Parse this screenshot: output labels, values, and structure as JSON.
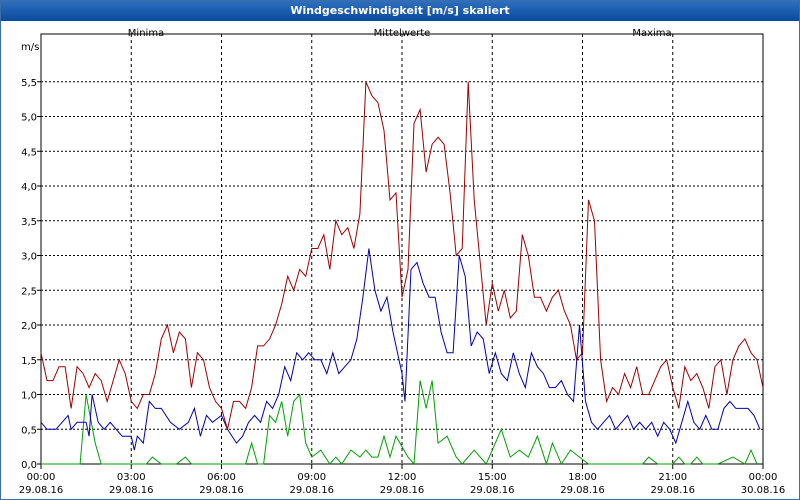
{
  "window": {
    "title": "Windgeschwindigkeit [m/s] skaliert"
  },
  "chart_data": {
    "type": "line",
    "title": "Windgeschwindigkeit [m/s] skaliert",
    "ylabel": "m/s",
    "ylim": [
      0,
      5.7
    ],
    "yticks": [
      "0,0",
      "0,5",
      "1,0",
      "1,5",
      "2,0",
      "2,5",
      "3,0",
      "3,5",
      "4,0",
      "4,5",
      "5,0",
      "5,5"
    ],
    "xlim_hours": [
      0,
      24
    ],
    "xticks": [
      {
        "time": "00:00",
        "date": "29.08.16"
      },
      {
        "time": "03:00",
        "date": "29.08.16"
      },
      {
        "time": "06:00",
        "date": "29.08.16"
      },
      {
        "time": "09:00",
        "date": "29.08.16"
      },
      {
        "time": "12:00",
        "date": "29.08.16"
      },
      {
        "time": "15:00",
        "date": "29.08.16"
      },
      {
        "time": "18:00",
        "date": "29.08.16"
      },
      {
        "time": "21:00",
        "date": "29.08.16"
      },
      {
        "time": "00:00",
        "date": "30.08.16"
      }
    ],
    "grid": true,
    "legend_position": "top",
    "series": [
      {
        "name": "Minima",
        "color": "#00a000",
        "x": [
          0,
          1.3,
          1.5,
          1.8,
          2.0,
          2.4,
          3.5,
          3.7,
          4.0,
          4.5,
          4.8,
          5.0,
          5.5,
          6.0,
          6.5,
          6.8,
          7.0,
          7.2,
          7.4,
          7.6,
          7.8,
          8.0,
          8.2,
          8.4,
          8.6,
          8.8,
          9.0,
          9.3,
          9.6,
          9.8,
          10.0,
          10.3,
          10.6,
          10.8,
          11.0,
          11.2,
          11.4,
          11.6,
          11.8,
          12.2,
          12.4,
          12.6,
          12.8,
          13.0,
          13.2,
          13.5,
          13.8,
          14.0,
          14.4,
          14.6,
          14.8,
          15.0,
          15.3,
          15.6,
          15.9,
          16.2,
          16.5,
          16.8,
          17.0,
          17.3,
          17.6,
          17.9,
          18.2,
          19.0,
          19.5,
          20.0,
          20.2,
          20.5,
          21.0,
          21.2,
          21.4,
          21.6,
          21.8,
          22.0,
          22.5,
          23.0,
          23.4,
          23.6,
          23.8
        ],
        "y": [
          0.0,
          0.0,
          1.0,
          0.3,
          0.0,
          0.0,
          0.0,
          0.1,
          0.0,
          0.0,
          0.1,
          0.0,
          0.0,
          0.0,
          0.0,
          0.0,
          0.3,
          0.0,
          0.0,
          0.7,
          0.6,
          0.9,
          0.4,
          0.9,
          1.0,
          0.3,
          0.1,
          0.2,
          0.0,
          0.1,
          0.0,
          0.2,
          0.1,
          0.2,
          0.1,
          0.1,
          0.4,
          0.1,
          0.4,
          0.1,
          0.0,
          1.2,
          0.8,
          1.2,
          0.3,
          0.4,
          0.1,
          0.0,
          0.2,
          0.1,
          0.0,
          0.2,
          0.5,
          0.1,
          0.2,
          0.1,
          0.4,
          0.0,
          0.3,
          0.0,
          0.2,
          0.1,
          0.0,
          0.0,
          0.0,
          0.0,
          0.1,
          0.0,
          0.0,
          0.1,
          0.0,
          0.0,
          0.1,
          0.0,
          0.0,
          0.1,
          0.0,
          0.2,
          0.0
        ]
      },
      {
        "name": "Mittelwerte",
        "color": "#0000b0",
        "x": [
          0,
          0.2,
          0.5,
          0.7,
          0.9,
          1.0,
          1.2,
          1.5,
          1.6,
          1.7,
          1.9,
          2.1,
          2.3,
          2.5,
          2.7,
          2.9,
          3.0,
          3.1,
          3.2,
          3.4,
          3.6,
          3.8,
          4.0,
          4.3,
          4.6,
          4.9,
          5.1,
          5.3,
          5.5,
          5.7,
          6.0,
          6.2,
          6.5,
          6.7,
          6.9,
          7.1,
          7.3,
          7.5,
          7.7,
          7.9,
          8.1,
          8.3,
          8.5,
          8.7,
          8.9,
          9.1,
          9.3,
          9.5,
          9.7,
          9.9,
          10.1,
          10.3,
          10.5,
          10.7,
          10.9,
          11.1,
          11.3,
          11.5,
          11.7,
          11.9,
          12.0,
          12.1,
          12.3,
          12.5,
          12.7,
          12.9,
          13.1,
          13.3,
          13.5,
          13.7,
          13.9,
          14.1,
          14.3,
          14.5,
          14.7,
          14.9,
          15.1,
          15.3,
          15.5,
          15.7,
          15.9,
          16.1,
          16.3,
          16.5,
          16.7,
          16.9,
          17.1,
          17.3,
          17.5,
          17.7,
          17.9,
          18.1,
          18.3,
          18.5,
          18.7,
          18.9,
          19.1,
          19.3,
          19.5,
          19.7,
          19.9,
          20.1,
          20.3,
          20.5,
          20.7,
          20.9,
          21.1,
          21.3,
          21.5,
          21.7,
          21.9,
          22.1,
          22.3,
          22.5,
          22.7,
          22.9,
          23.1,
          23.3,
          23.5,
          23.7,
          23.9
        ],
        "y": [
          0.6,
          0.5,
          0.5,
          0.6,
          0.7,
          0.5,
          0.6,
          0.6,
          0.4,
          1.0,
          0.6,
          0.5,
          0.6,
          0.5,
          0.4,
          0.4,
          0.4,
          0.2,
          0.4,
          0.3,
          0.9,
          0.8,
          0.8,
          0.6,
          0.5,
          0.6,
          0.8,
          0.4,
          0.7,
          0.6,
          0.7,
          0.5,
          0.3,
          0.4,
          0.6,
          0.7,
          0.6,
          0.9,
          0.8,
          1.0,
          1.4,
          1.2,
          1.6,
          1.5,
          1.6,
          1.5,
          1.5,
          1.3,
          1.6,
          1.3,
          1.4,
          1.5,
          1.8,
          2.4,
          3.1,
          2.5,
          2.2,
          2.4,
          1.9,
          1.5,
          1.3,
          0.9,
          2.8,
          2.9,
          2.6,
          2.4,
          2.4,
          1.9,
          1.6,
          1.6,
          3.0,
          2.7,
          1.7,
          1.9,
          1.8,
          1.3,
          1.6,
          1.3,
          1.2,
          1.6,
          1.3,
          1.1,
          1.6,
          1.4,
          1.3,
          1.1,
          1.1,
          1.2,
          1.0,
          0.9,
          2.0,
          0.9,
          0.6,
          0.5,
          0.6,
          0.7,
          0.5,
          0.6,
          0.7,
          0.5,
          0.6,
          0.5,
          0.6,
          0.4,
          0.6,
          0.5,
          0.3,
          0.6,
          0.9,
          0.6,
          0.5,
          0.7,
          0.5,
          0.5,
          0.8,
          0.9,
          0.8,
          0.8,
          0.8,
          0.7,
          0.5
        ]
      },
      {
        "name": "Maxima",
        "color": "#a00000",
        "x": [
          0,
          0.2,
          0.4,
          0.6,
          0.8,
          1.0,
          1.2,
          1.4,
          1.6,
          1.8,
          2.0,
          2.2,
          2.4,
          2.6,
          2.8,
          3.0,
          3.2,
          3.4,
          3.6,
          3.8,
          4.0,
          4.2,
          4.4,
          4.6,
          4.8,
          5.0,
          5.2,
          5.4,
          5.6,
          5.8,
          6.0,
          6.2,
          6.4,
          6.6,
          6.8,
          7.0,
          7.2,
          7.4,
          7.6,
          7.8,
          8.0,
          8.2,
          8.4,
          8.6,
          8.8,
          9.0,
          9.2,
          9.4,
          9.6,
          9.8,
          10.0,
          10.2,
          10.4,
          10.6,
          10.8,
          11.0,
          11.2,
          11.4,
          11.6,
          11.8,
          12.0,
          12.2,
          12.4,
          12.6,
          12.8,
          13.0,
          13.2,
          13.4,
          13.6,
          13.8,
          14.0,
          14.2,
          14.4,
          14.6,
          14.8,
          15.0,
          15.2,
          15.4,
          15.6,
          15.8,
          16.0,
          16.2,
          16.4,
          16.6,
          16.8,
          17.0,
          17.2,
          17.4,
          17.6,
          17.8,
          18.0,
          18.2,
          18.4,
          18.6,
          18.8,
          19.0,
          19.2,
          19.4,
          19.6,
          19.8,
          20.0,
          20.2,
          20.4,
          20.6,
          20.8,
          21.0,
          21.2,
          21.4,
          21.6,
          21.8,
          22.0,
          22.2,
          22.4,
          22.6,
          22.8,
          23.0,
          23.2,
          23.4,
          23.6,
          23.8,
          24.0
        ],
        "y": [
          1.6,
          1.2,
          1.2,
          1.4,
          1.4,
          0.8,
          1.4,
          1.3,
          1.1,
          1.3,
          1.2,
          0.9,
          1.2,
          1.5,
          1.3,
          0.9,
          0.8,
          1.0,
          1.0,
          1.3,
          1.8,
          2.0,
          1.6,
          1.9,
          1.8,
          1.1,
          1.6,
          1.5,
          1.1,
          0.9,
          0.8,
          0.5,
          0.9,
          0.9,
          0.8,
          1.1,
          1.7,
          1.7,
          1.8,
          2.0,
          2.3,
          2.7,
          2.5,
          2.8,
          2.7,
          3.1,
          3.1,
          3.3,
          2.8,
          3.5,
          3.3,
          3.4,
          3.1,
          3.6,
          5.5,
          5.3,
          5.2,
          4.8,
          3.8,
          3.9,
          2.4,
          2.8,
          4.9,
          5.1,
          4.2,
          4.6,
          4.7,
          4.6,
          3.9,
          3.0,
          3.1,
          5.5,
          3.8,
          2.9,
          2.0,
          2.6,
          2.2,
          2.5,
          2.1,
          2.2,
          3.3,
          3.0,
          2.4,
          2.4,
          2.2,
          2.4,
          2.5,
          2.2,
          2.0,
          1.5,
          1.6,
          3.8,
          3.5,
          1.5,
          0.9,
          1.1,
          1.0,
          1.3,
          1.1,
          1.4,
          1.0,
          1.0,
          1.2,
          1.4,
          1.5,
          1.1,
          0.8,
          1.4,
          1.2,
          1.3,
          1.1,
          0.8,
          1.4,
          1.5,
          1.0,
          1.5,
          1.7,
          1.8,
          1.6,
          1.5,
          1.1
        ]
      }
    ]
  }
}
